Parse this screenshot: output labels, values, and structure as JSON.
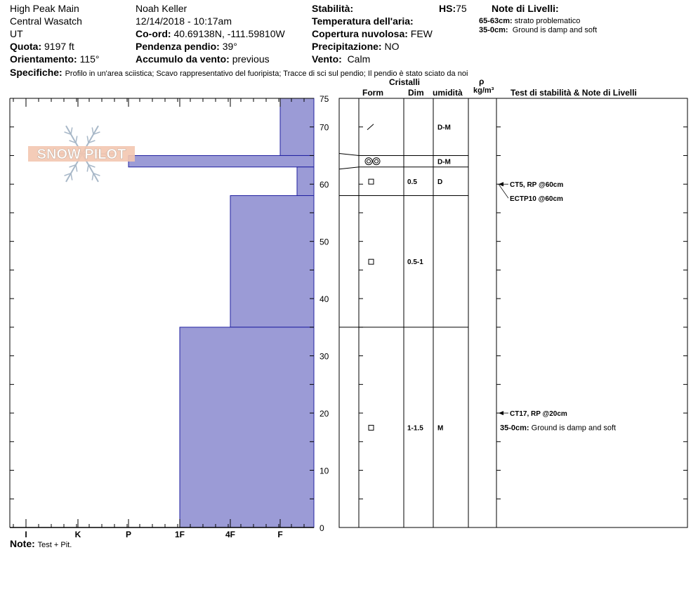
{
  "header": {
    "location": "High Peak Main",
    "range": "Central Wasatch",
    "state": "UT",
    "observer": "Noah Keller",
    "datetime": "12/14/2018 - 10:17am",
    "elevation_label": "Quota:",
    "elevation_value": "9197 ft",
    "aspect_label": "Orientamento:",
    "aspect_value": "115°",
    "coord_label": "Co-ord:",
    "coord_value": "40.69138N, -111.59810W",
    "slope_label": "Pendenza pendio:",
    "slope_value": "39°",
    "wind_load_label": "Accumulo da vento:",
    "wind_load_value": "previous",
    "stability_label": "Stabilità:",
    "air_temp_label": "Temperatura dell'aria:",
    "sky_label": "Copertura nuvolosa:",
    "sky_value": "FEW",
    "precip_label": "Precipitazione:",
    "precip_value": "NO",
    "wind_label": "Vento:",
    "wind_value": "Calm",
    "hs_label": "HS:",
    "hs_value": "75",
    "layer_notes_title": "Note di Livelli:",
    "layer_notes": [
      {
        "range": "65-63cm:",
        "text": "strato problematico"
      },
      {
        "range": "35-0cm:",
        "text": "Ground is damp and soft"
      }
    ],
    "specifics_label": "Specifiche:",
    "specifics_value": "Profilo in un'area sciistica; Scavo rappresentativo del fuoripista; Tracce di sci sul pendio; Il pendio è stato sciato da noi"
  },
  "columns": {
    "crystals": "Cristalli",
    "form": "Form",
    "dim": "Dim",
    "moisture": "umidità",
    "rho": "ρ",
    "density_unit": "kg/m³",
    "stability_notes": "Test di stabilità & Note di Livelli"
  },
  "logo_text": "SNOW PILOT",
  "footer": {
    "note_label": "Note:",
    "note_value": "Test + Pit."
  },
  "colors": {
    "hardness_fill": "#9b9bd6",
    "hardness_stroke": "#2020a0"
  },
  "chart_data": {
    "type": "bar",
    "orientation": "horizontal",
    "x_categories": [
      "I",
      "K",
      "P",
      "1F",
      "4F",
      "F"
    ],
    "x_scale_note": "hand hardness increasing to the left; F at right edge region",
    "ylim": [
      0,
      75
    ],
    "y_ticks": [
      0,
      10,
      20,
      30,
      40,
      50,
      60,
      70,
      75
    ],
    "hardness_layers": [
      {
        "top": 75,
        "bottom": 65,
        "hardness": "F"
      },
      {
        "top": 65,
        "bottom": 63,
        "hardness": "P"
      },
      {
        "top": 63,
        "bottom": 58,
        "hardness": "F+"
      },
      {
        "top": 58,
        "bottom": 35,
        "hardness": "4F"
      },
      {
        "top": 35,
        "bottom": 0,
        "hardness": "1F"
      }
    ],
    "layers": [
      {
        "top": 75,
        "bottom": 65,
        "form": "precip-particles",
        "dim": "",
        "moisture": "D-M"
      },
      {
        "top": 65,
        "bottom": 63,
        "form": "melt-forms",
        "dim": "",
        "moisture": "D-M"
      },
      {
        "top": 63,
        "bottom": 58,
        "form": "faceted",
        "dim": "0.5",
        "moisture": "D"
      },
      {
        "top": 58,
        "bottom": 35,
        "form": "faceted",
        "dim": "0.5-1",
        "moisture": ""
      },
      {
        "top": 35,
        "bottom": 0,
        "form": "faceted",
        "dim": "1-1.5",
        "moisture": "M"
      }
    ],
    "tests": [
      {
        "label": "CT5, RP @60cm",
        "depth": 60
      },
      {
        "label": "ECTP10 @60cm",
        "depth": 60
      },
      {
        "label": "CT17, RP @20cm",
        "depth": 20
      }
    ],
    "layer_note": {
      "range": "35-0cm:",
      "text": "Ground is damp and soft",
      "depth": 17.5
    }
  }
}
